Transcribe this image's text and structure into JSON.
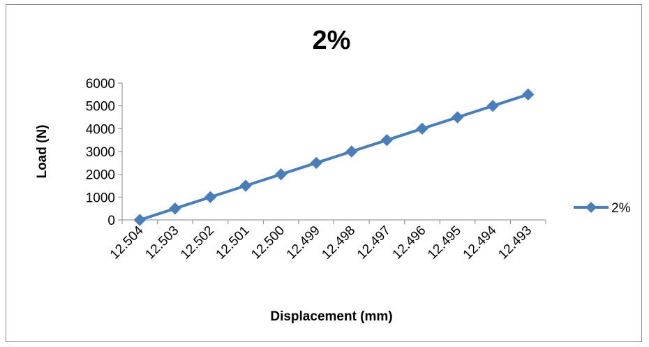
{
  "chart_data": {
    "type": "line",
    "title": "2%",
    "xlabel": "Displacement (mm)",
    "ylabel": "Load (N)",
    "categories": [
      "12.504",
      "12.503",
      "12.502",
      "12.501",
      "12.500",
      "12.499",
      "12.498",
      "12.497",
      "12.496",
      "12.495",
      "12.494",
      "12.493"
    ],
    "series": [
      {
        "name": "2%",
        "values": [
          0,
          500,
          1000,
          1500,
          2000,
          2500,
          3000,
          3500,
          4000,
          4500,
          5000,
          5500
        ],
        "color": "#4a7ebb",
        "marker": "diamond"
      }
    ],
    "ylim": [
      0,
      6000
    ],
    "yticks": [
      0,
      1000,
      2000,
      3000,
      4000,
      5000,
      6000
    ],
    "grid": false,
    "legend": "right"
  }
}
